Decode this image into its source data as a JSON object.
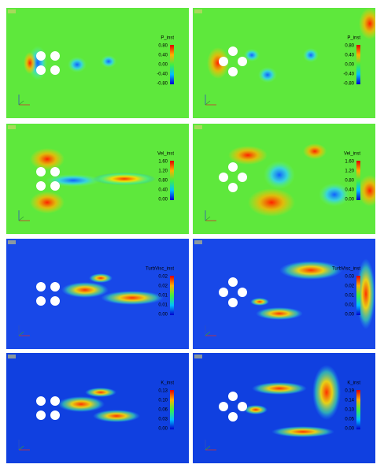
{
  "panels": [
    {
      "label": "P_inst",
      "ticks": [
        "0.80",
        "0.40",
        "0.00",
        "-0.40",
        "-0.80"
      ]
    },
    {
      "label": "P_inst",
      "ticks": [
        "0.80",
        "0.40",
        "0.00",
        "-0.40",
        "-0.80"
      ]
    },
    {
      "label": "Vel_inst",
      "ticks": [
        "1.60",
        "1.20",
        "0.80",
        "0.40",
        "0.00"
      ]
    },
    {
      "label": "Vel_inst",
      "ticks": [
        "1.60",
        "1.20",
        "0.80",
        "0.40",
        "0.00"
      ]
    },
    {
      "label": "TurbVisc_inst",
      "ticks": [
        "0.02",
        "0.02",
        "0.01",
        "0.01",
        "0.00"
      ]
    },
    {
      "label": "TurbVisc_inst",
      "ticks": [
        "0.03",
        "0.02",
        "0.01",
        "0.01",
        "0.00"
      ]
    },
    {
      "label": "K_inst",
      "ticks": [
        "0.13",
        "0.10",
        "0.06",
        "0.03",
        "0.00"
      ]
    },
    {
      "label": "K_inst",
      "ticks": [
        "0.19",
        "0.14",
        "0.10",
        "0.05",
        "0.00"
      ]
    }
  ]
}
